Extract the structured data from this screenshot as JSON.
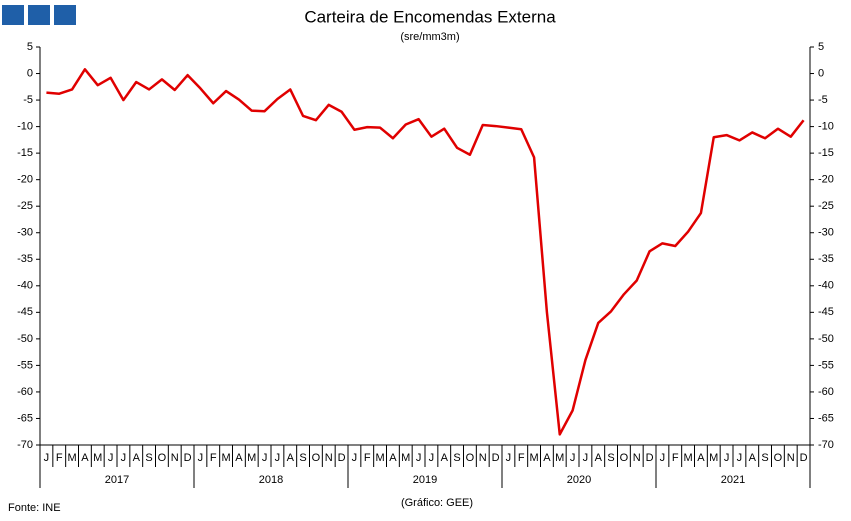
{
  "chart_data": {
    "type": "line",
    "title": "Carteira de Encomendas Externa",
    "subtitle": "(sre/mm3m)",
    "categories": [
      "J",
      "F",
      "M",
      "A",
      "M",
      "J",
      "J",
      "A",
      "S",
      "O",
      "N",
      "D",
      "J",
      "F",
      "M",
      "A",
      "M",
      "J",
      "J",
      "A",
      "S",
      "O",
      "N",
      "D",
      "J",
      "F",
      "M",
      "A",
      "M",
      "J",
      "J",
      "A",
      "S",
      "O",
      "N",
      "D",
      "J",
      "F",
      "M",
      "A",
      "M",
      "J",
      "J",
      "A",
      "S",
      "O",
      "N",
      "D",
      "J",
      "F",
      "M",
      "A",
      "M",
      "J",
      "J",
      "A",
      "S",
      "O",
      "N",
      "D"
    ],
    "year_labels": [
      "2017",
      "2018",
      "2019",
      "2020",
      "2021"
    ],
    "series": [
      {
        "name": "Carteira de Encomendas Externa",
        "color": "#e00000",
        "values": [
          -3.6,
          -3.8,
          -3,
          0.8,
          -2.2,
          -0.8,
          -5,
          -1.6,
          -3,
          -1.1,
          -3.1,
          -0.3,
          -2.8,
          -5.6,
          -3.3,
          -4.9,
          -7,
          -7.1,
          -4.8,
          -3,
          -8,
          -8.8,
          -5.9,
          -7.2,
          -10.6,
          -10.1,
          -10.2,
          -12.2,
          -9.6,
          -8.6,
          -11.9,
          -10.4,
          -14,
          -15.3,
          -9.7,
          -9.9,
          -10.2,
          -10.5,
          -15.8,
          -45,
          -68,
          -63.5,
          -54,
          -47,
          -44.8,
          -41.6,
          -39,
          -33.5,
          -32,
          -32.5,
          -29.8,
          -26.3,
          -12,
          -11.6,
          -12.6,
          -11.1,
          -12.2,
          -10.4,
          -11.9,
          -8.8
        ]
      }
    ],
    "ylim": [
      -70,
      5
    ],
    "yticks": [
      5,
      0,
      -5,
      -10,
      -15,
      -20,
      -25,
      -30,
      -35,
      -40,
      -45,
      -50,
      -55,
      -60,
      -65,
      -70
    ],
    "grid": false,
    "source": "Fonte: INE",
    "credit": "(Gráfico: GEE)"
  }
}
